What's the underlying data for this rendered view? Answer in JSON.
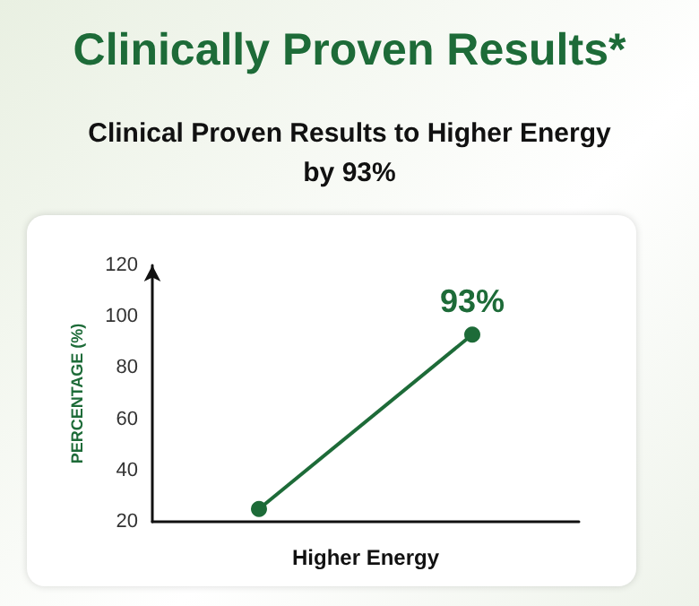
{
  "chart_data": {
    "type": "line",
    "title": "Clinically Proven Results*",
    "subtitle": "Clinical Proven Results to Higher Energy by 93%",
    "xlabel": "Higher Energy",
    "ylabel": "PERCENTAGE (%)",
    "categories": [
      null,
      null
    ],
    "series": [
      {
        "color": "#1d6b38",
        "values": [
          25,
          93
        ],
        "value_labels": [
          null,
          "93%"
        ]
      }
    ],
    "ylim": [
      20,
      120
    ],
    "yticks": [
      20,
      40,
      60,
      80,
      100,
      120
    ],
    "grid": false,
    "marker": "circle",
    "line_style": "solid"
  }
}
